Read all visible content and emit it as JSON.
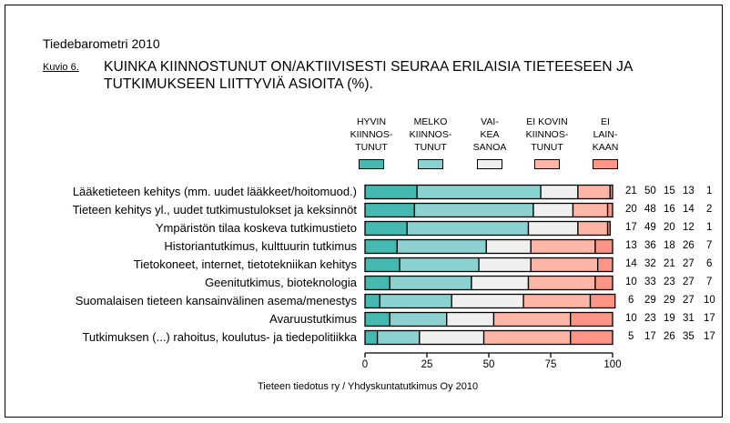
{
  "header": {
    "source_title": "Tiedebarometri 2010",
    "figure_label": "Kuvio 6.",
    "title_line1": "KUINKA KIINNOSTUNUT ON/AKTIIVISESTI SEURAA ERILAISIA TIETEESEEN JA",
    "title_line2": "TUTKIMUKSEEN LIITTYVIÄ ASIOITA (%)."
  },
  "footer": {
    "source": "Tieteen tiedotus ry / Yhdyskuntatutkimus Oy 2010"
  },
  "chart_data": {
    "type": "bar",
    "orientation": "horizontal",
    "stacked": true,
    "title": "KUINKA KIINNOSTUNUT ON/AKTIIVISESTI SEURAA ERILAISIA TIETEESEEN JA TUTKIMUKSEEN LIITTYVIÄ ASIOITA (%).",
    "xlabel": "",
    "ylabel": "",
    "xlim": [
      0,
      100
    ],
    "xticks": [
      "0",
      "25",
      "50",
      "75",
      "100"
    ],
    "xtick_values": [
      0,
      25,
      50,
      75,
      100
    ],
    "legend_position": "top",
    "categories": [
      "Lääketieteen kehitys (mm. uudet lääkkeet/hoitomuod.)",
      "Tieteen kehitys yl., uudet tutkimustulokset ja keksinnöt",
      "Ympäristön tilaa koskeva tutkimustieto",
      "Historiantutkimus, kulttuurin tutkimus",
      "Tietokoneet, internet, tietotekniikan kehitys",
      "Geenitutkimus, bioteknologia",
      "Suomalaisen tieteen kansainvälinen asema/menestys",
      "Avaruustutkimus",
      "Tutkimuksen (...) rahoitus, koulutus- ja tiedepolitiikka"
    ],
    "series": [
      {
        "name": "HYVIN KIINNOS- TUNUT",
        "legend_lines": [
          "HYVIN",
          "KIINNOS-",
          "TUNUT"
        ],
        "color": "#45b8b0",
        "values": [
          21,
          20,
          17,
          13,
          14,
          10,
          6,
          10,
          5
        ]
      },
      {
        "name": "MELKO KIINNOS- TUNUT",
        "legend_lines": [
          "MELKO",
          "KIINNOS-",
          "TUNUT"
        ],
        "color": "#8ad1cf",
        "values": [
          50,
          48,
          49,
          36,
          32,
          33,
          29,
          23,
          17
        ]
      },
      {
        "name": "VAI- KEA SANOA",
        "legend_lines": [
          "VAI-",
          "KEA",
          "SANOA"
        ],
        "color": "#efefef",
        "values": [
          15,
          16,
          20,
          18,
          21,
          23,
          29,
          19,
          26
        ]
      },
      {
        "name": "EI KOVIN KIINNOS- TUNUT",
        "legend_lines": [
          "EI KOVIN",
          "KIINNOS-",
          "TUNUT"
        ],
        "color": "#fdb5a6",
        "values": [
          13,
          14,
          12,
          26,
          27,
          27,
          27,
          31,
          35
        ]
      },
      {
        "name": "EI LAIN- KAAN",
        "legend_lines": [
          "EI",
          "LAIN-",
          "KAAN"
        ],
        "color": "#fc9585",
        "values": [
          1,
          2,
          1,
          7,
          6,
          7,
          10,
          17,
          17
        ]
      }
    ]
  }
}
